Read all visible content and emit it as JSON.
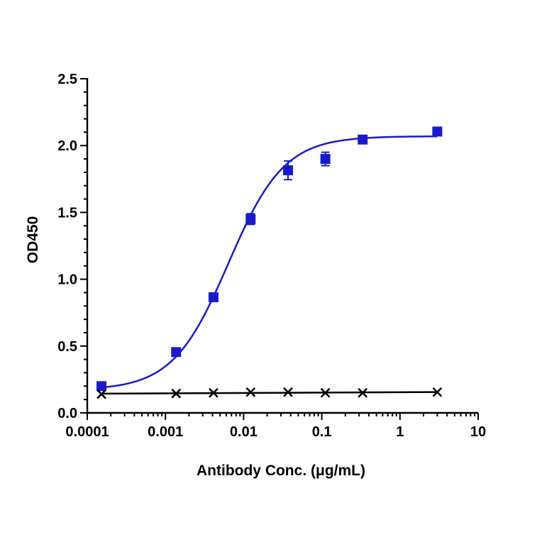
{
  "chart_data": {
    "type": "scatter",
    "title": "",
    "xlabel": "Antibody Conc. (μg/mL)",
    "ylabel": "OD450",
    "x_scale": "log",
    "xlim": [
      0.0001,
      10
    ],
    "ylim": [
      0,
      2.5
    ],
    "x_tick_labels": [
      "0.0001",
      "0.001",
      "0.01",
      "0.1",
      "1",
      "10"
    ],
    "y_tick_labels": [
      "0.0",
      "0.5",
      "1.0",
      "1.5",
      "2.0",
      "2.5"
    ],
    "grid": false,
    "legend": false,
    "series": [
      {
        "color": "#1a1acc",
        "marker": "square",
        "fit": "sigmoid",
        "x": [
          0.000152,
          0.00137,
          0.00412,
          0.0123,
          0.037,
          0.111,
          0.333,
          3.0
        ],
        "y": [
          0.2,
          0.455,
          0.865,
          1.45,
          1.815,
          1.9,
          2.045,
          2.105
        ],
        "error": [
          0.01,
          0.01,
          0.02,
          0.04,
          0.07,
          0.05,
          0.015,
          0.015
        ]
      },
      {
        "color": "#000000",
        "marker": "x",
        "fit": "line",
        "x": [
          0.000152,
          0.00137,
          0.00412,
          0.0123,
          0.037,
          0.111,
          0.333,
          3.0
        ],
        "y": [
          0.14,
          0.145,
          0.15,
          0.155,
          0.155,
          0.15,
          0.15,
          0.155
        ]
      }
    ]
  }
}
